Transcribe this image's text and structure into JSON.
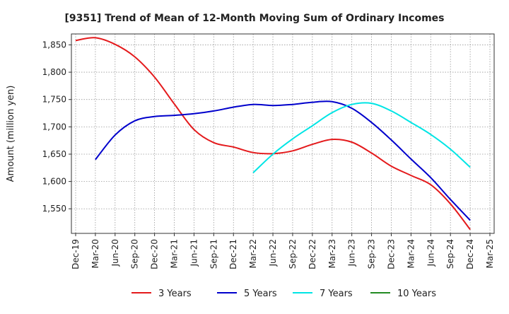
{
  "chart_data": {
    "type": "line",
    "title": "[9351]  Trend of Mean of 12-Month Moving Sum of Ordinary Incomes",
    "xlabel": "",
    "ylabel": "Amount (million yen)",
    "x_ticks": [
      "Dec-19",
      "Mar-20",
      "Jun-20",
      "Sep-20",
      "Dec-20",
      "Mar-21",
      "Jun-21",
      "Sep-21",
      "Dec-21",
      "Mar-22",
      "Jun-22",
      "Sep-22",
      "Dec-22",
      "Mar-23",
      "Jun-23",
      "Sep-23",
      "Dec-23",
      "Mar-24",
      "Jun-24",
      "Sep-24",
      "Dec-24",
      "Mar-25"
    ],
    "y_ticks": [
      1550,
      1600,
      1650,
      1700,
      1750,
      1800,
      1850
    ],
    "y_tick_labels": [
      "1,550",
      "1,600",
      "1,650",
      "1,700",
      "1,750",
      "1,800",
      "1,850"
    ],
    "ylim": [
      1505,
      1870
    ],
    "grid": true,
    "legend_position": "bottom",
    "series": [
      {
        "name": "3 Years",
        "color": "#e41a1c",
        "x_index": [
          0,
          1,
          2,
          3,
          4,
          5,
          6,
          7,
          8,
          9,
          10,
          11,
          12,
          13,
          14,
          15,
          16,
          17,
          18,
          19,
          20
        ],
        "values": [
          1858,
          1863,
          1851,
          1828,
          1791,
          1742,
          1695,
          1671,
          1663,
          1653,
          1651,
          1656,
          1668,
          1677,
          1672,
          1652,
          1628,
          1611,
          1594,
          1559,
          1512
        ]
      },
      {
        "name": "5 Years",
        "color": "#0000cc",
        "x_index": [
          1,
          2,
          3,
          4,
          5,
          6,
          7,
          8,
          9,
          10,
          11,
          12,
          13,
          14,
          15,
          16,
          17,
          18,
          19,
          20
        ],
        "values": [
          1640,
          1685,
          1711,
          1719,
          1721,
          1724,
          1729,
          1736,
          1741,
          1739,
          1741,
          1745,
          1746,
          1734,
          1708,
          1676,
          1641,
          1607,
          1567,
          1529
        ]
      },
      {
        "name": "7 Years",
        "color": "#00e5e5",
        "x_index": [
          9,
          10,
          11,
          12,
          13,
          14,
          15,
          16,
          17,
          18,
          19,
          20
        ],
        "values": [
          1616,
          1650,
          1678,
          1702,
          1726,
          1741,
          1743,
          1729,
          1708,
          1686,
          1659,
          1626
        ]
      },
      {
        "name": "10 Years",
        "color": "#228b22",
        "x_index": [],
        "values": []
      }
    ]
  }
}
